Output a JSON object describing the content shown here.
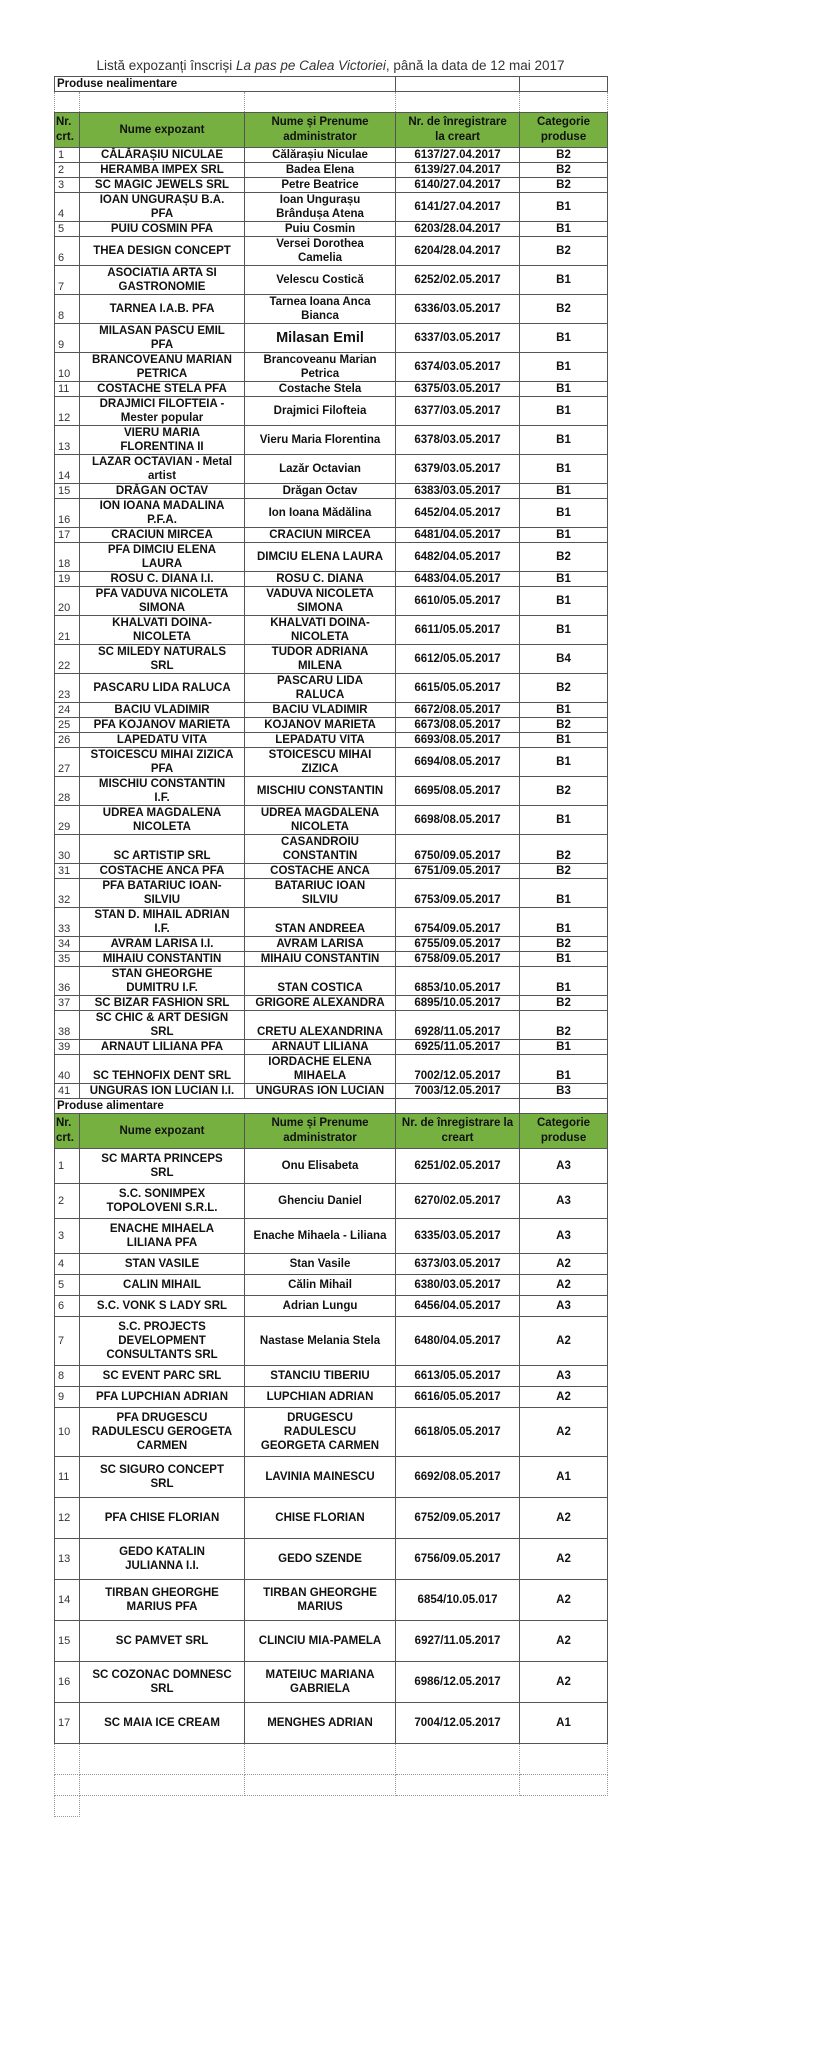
{
  "title": {
    "prefix": "Listă expozanți înscriși ",
    "event": "La pas pe Calea Victoriei",
    "suffix": ", până la data de 12 mai 2017"
  },
  "colors": {
    "header_bg": "#76b041"
  },
  "columns": [
    "Nr.\ncrt.",
    "Nume expozant",
    "Nume și Prenume\nadministrator",
    "Nr. de înregistrare\nla creart",
    "Categorie\nproduse"
  ],
  "columns_alimentare": [
    "Nr.\ncrt.",
    "Nume expozant",
    "Nume și Prenume\nadministrator",
    "Nr. de înregistrare la\ncreart",
    "Categorie\nproduse"
  ],
  "sections": [
    {
      "label": "Produse nealimentare",
      "rows": [
        [
          "1",
          "CĂLĂRAȘIU NICULAE",
          "Călărașiu Niculae",
          "6137/27.04.2017",
          "B2"
        ],
        [
          "2",
          "HERAMBA IMPEX SRL",
          "Badea Elena",
          "6139/27.04.2017",
          "B2"
        ],
        [
          "3",
          "SC MAGIC JEWELS SRL",
          "Petre Beatrice",
          "6140/27.04.2017",
          "B2"
        ],
        [
          "4",
          "IOAN UNGURAȘU B.A.\nPFA",
          "Ioan Ungurașu\nBrândușa Atena",
          "6141/27.04.2017",
          "B1"
        ],
        [
          "5",
          "PUIU COSMIN PFA",
          "Puiu Cosmin",
          "6203/28.04.2017",
          "B1"
        ],
        [
          "6",
          "THEA DESIGN CONCEPT",
          "Versei Dorothea\nCamelia",
          "6204/28.04.2017",
          "B2"
        ],
        [
          "7",
          "ASOCIATIA ARTA SI\nGASTRONOMIE",
          "Velescu Costică",
          "6252/02.05.2017",
          "B1"
        ],
        [
          "8",
          "TARNEA I.A.B. PFA",
          "Tarnea Ioana Anca\nBianca",
          "6336/03.05.2017",
          "B2"
        ],
        [
          "9",
          "MILASAN PASCU EMIL\nPFA",
          "Milasan Emil",
          "6337/03.05.2017",
          "B1"
        ],
        [
          "10",
          "BRANCOVEANU MARIAN\nPETRICA",
          "Brancoveanu Marian\nPetrica",
          "6374/03.05.2017",
          "B1"
        ],
        [
          "11",
          "COSTACHE STELA PFA",
          "Costache Stela",
          "6375/03.05.2017",
          "B1"
        ],
        [
          "12",
          "DRAJMICI FILOFTEIA -\nMester popular",
          "Drajmici Filofteia",
          "6377/03.05.2017",
          "B1"
        ],
        [
          "13",
          "VIERU MARIA\nFLORENTINA II",
          "Vieru Maria Florentina",
          "6378/03.05.2017",
          "B1"
        ],
        [
          "14",
          "LAZAR OCTAVIAN - Metal\nartist",
          "Lazăr Octavian",
          "6379/03.05.2017",
          "B1"
        ],
        [
          "15",
          "DRĂGAN OCTAV",
          "Drăgan Octav",
          "6383/03.05.2017",
          "B1"
        ],
        [
          "16",
          "ION IOANA MADALINA\nP.F.A.",
          "Ion Ioana Mădălina",
          "6452/04.05.2017",
          "B1"
        ],
        [
          "17",
          "CRACIUN MIRCEA",
          "CRACIUN MIRCEA",
          "6481/04.05.2017",
          "B1"
        ],
        [
          "18",
          "PFA DIMCIU ELENA\nLAURA",
          "DIMCIU ELENA LAURA",
          "6482/04.05.2017",
          "B2"
        ],
        [
          "19",
          "ROSU C. DIANA I.I.",
          "ROSU C. DIANA",
          "6483/04.05.2017",
          "B1"
        ],
        [
          "20",
          "PFA VADUVA NICOLETA\nSIMONA",
          "VADUVA NICOLETA\nSIMONA",
          "6610/05.05.2017",
          "B1"
        ],
        [
          "21",
          "KHALVATI DOINA-\nNICOLETA",
          "KHALVATI DOINA-\nNICOLETA",
          "6611/05.05.2017",
          "B1"
        ],
        [
          "22",
          "SC MILEDY NATURALS\nSRL",
          "TUDOR ADRIANA\nMILENA",
          "6612/05.05.2017",
          "B4"
        ],
        [
          "23",
          "PASCARU LIDA RALUCA",
          "PASCARU LIDA\nRALUCA",
          "6615/05.05.2017",
          "B2"
        ],
        [
          "24",
          "BACIU VLADIMIR",
          "BACIU VLADIMIR",
          "6672/08.05.2017",
          "B1"
        ],
        [
          "25",
          "PFA KOJANOV MARIETA",
          "KOJANOV MARIETA",
          "6673/08.05.2017",
          "B2"
        ],
        [
          "26",
          "LAPEDATU VITA",
          "LEPADATU VITA",
          "6693/08.05.2017",
          "B1"
        ],
        [
          "27",
          "STOICESCU MIHAI ZIZICA\nPFA",
          "STOICESCU MIHAI\nZIZICA",
          "6694/08.05.2017",
          "B1"
        ],
        [
          "28",
          "MISCHIU CONSTANTIN\nI.F.",
          "MISCHIU CONSTANTIN",
          "6695/08.05.2017",
          "B2"
        ],
        [
          "29",
          "UDREA MAGDALENA\nNICOLETA",
          "UDREA MAGDALENA\nNICOLETA",
          "6698/08.05.2017",
          "B1"
        ],
        [
          "30",
          "SC ARTISTIP SRL",
          "CASANDROIU\nCONSTANTIN",
          "6750/09.05.2017",
          "B2"
        ],
        [
          "31",
          "COSTACHE ANCA PFA",
          "COSTACHE ANCA",
          "6751/09.05.2017",
          "B2"
        ],
        [
          "32",
          "PFA BATARIUC IOAN-\nSILVIU",
          "BATARIUC IOAN\nSILVIU",
          "6753/09.05.2017",
          "B1"
        ],
        [
          "33",
          "STAN D. MIHAIL ADRIAN\nI.F.",
          "STAN ANDREEA",
          "6754/09.05.2017",
          "B1"
        ],
        [
          "34",
          "AVRAM LARISA I.I.",
          "AVRAM LARISA",
          "6755/09.05.2017",
          "B2"
        ],
        [
          "35",
          "MIHAIU CONSTANTIN",
          "MIHAIU CONSTANTIN",
          "6758/09.05.2017",
          "B1"
        ],
        [
          "36",
          "STAN GHEORGHE\nDUMITRU I.F.",
          "STAN COSTICA",
          "6853/10.05.2017",
          "B1"
        ],
        [
          "37",
          "SC BIZAR FASHION SRL",
          "GRIGORE ALEXANDRA",
          "6895/10.05.2017",
          "B2"
        ],
        [
          "38",
          "SC CHIC & ART DESIGN\nSRL",
          "CRETU ALEXANDRINA",
          "6928/11.05.2017",
          "B2"
        ],
        [
          "39",
          "ARNAUT LILIANA PFA",
          "ARNAUT LILIANA",
          "6925/11.05.2017",
          "B1"
        ],
        [
          "40",
          "SC TEHNOFIX DENT SRL",
          "IORDACHE ELENA\nMIHAELA",
          "7002/12.05.2017",
          "B1"
        ],
        [
          "41",
          "UNGURAS ION LUCIAN I.I.",
          "UNGURAS ION LUCIAN",
          "7003/12.05.2017",
          "B3"
        ]
      ]
    },
    {
      "label": "Produse alimentare",
      "rows": [
        [
          "1",
          "SC MARTA PRINCEPS\nSRL",
          "Onu Elisabeta",
          "6251/02.05.2017",
          "A3"
        ],
        [
          "2",
          "S.C. SONIMPEX\nTOPOLOVENI S.R.L.",
          "Ghenciu Daniel",
          "6270/02.05.2017",
          "A3"
        ],
        [
          "3",
          "ENACHE MIHAELA\nLILIANA PFA",
          "Enache Mihaela - Liliana",
          "6335/03.05.2017",
          "A3"
        ],
        [
          "4",
          "STAN VASILE",
          "Stan Vasile",
          "6373/03.05.2017",
          "A2"
        ],
        [
          "5",
          "CALIN MIHAIL",
          "Călin Mihail",
          "6380/03.05.2017",
          "A2"
        ],
        [
          "6",
          "S.C. VONK S LADY SRL",
          "Adrian Lungu",
          "6456/04.05.2017",
          "A3"
        ],
        [
          "7",
          "S.C. PROJECTS\nDEVELOPMENT\nCONSULTANTS SRL",
          "Nastase Melania Stela",
          "6480/04.05.2017",
          "A2"
        ],
        [
          "8",
          "SC EVENT PARC SRL",
          "STANCIU TIBERIU",
          "6613/05.05.2017",
          "A3"
        ],
        [
          "9",
          "PFA LUPCHIAN ADRIAN",
          "LUPCHIAN ADRIAN",
          "6616/05.05.2017",
          "A2"
        ],
        [
          "10",
          "PFA DRUGESCU\nRADULESCU GEROGETA\nCARMEN",
          "DRUGESCU\nRADULESCU\nGEORGETA CARMEN",
          "6618/05.05.2017",
          "A2"
        ],
        [
          "11",
          "SC SIGURO CONCEPT\nSRL",
          "LAVINIA MAINESCU",
          "6692/08.05.2017",
          "A1"
        ],
        [
          "12",
          "PFA CHISE FLORIAN",
          "CHISE FLORIAN",
          "6752/09.05.2017",
          "A2"
        ],
        [
          "13",
          "GEDO KATALIN\nJULIANNA I.I.",
          "GEDO SZENDE",
          "6756/09.05.2017",
          "A2"
        ],
        [
          "14",
          "TIRBAN GHEORGHE\nMARIUS PFA",
          "TIRBAN GHEORGHE\nMARIUS",
          "6854/10.05.017",
          "A2"
        ],
        [
          "15",
          "SC PAMVET SRL",
          "CLINCIU MIA-PAMELA",
          "6927/11.05.2017",
          "A2"
        ],
        [
          "16",
          "SC COZONAC DOMNESC\nSRL",
          "MATEIUC MARIANA\nGABRIELA",
          "6986/12.05.2017",
          "A2"
        ],
        [
          "17",
          "SC MAIA ICE CREAM",
          "MENGHES ADRIAN",
          "7004/12.05.2017",
          "A1"
        ]
      ]
    }
  ]
}
